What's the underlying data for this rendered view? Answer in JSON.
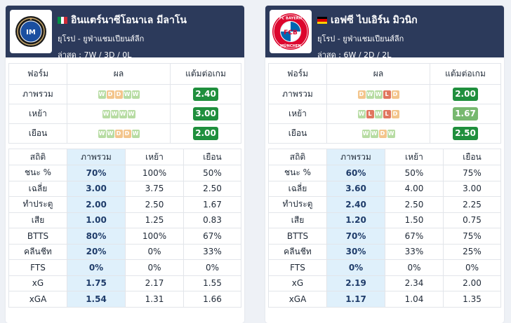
{
  "left": {
    "team_name": "อินแตร์นาซีโอนาเล มีลาโน",
    "competition": "ยุโรป - ยูฟ่าแชมเปียนส์ลีก",
    "last": "ล่าสุด : 7W / 3D / 0L",
    "logo_icon": "inter-crest-icon",
    "flag_colors": [
      "#009246",
      "#ffffff",
      "#ce2b37"
    ],
    "form_headers": [
      "ฟอร์ม",
      "ผล",
      "แต้มต่อเกม"
    ],
    "form_rows": [
      {
        "label": "ภาพรวม",
        "results": [
          "W",
          "D",
          "D",
          "W",
          "W"
        ],
        "ppg": "2.40",
        "shade": "dark"
      },
      {
        "label": "เหย้า",
        "results": [
          "W",
          "W",
          "W",
          "W"
        ],
        "ppg": "3.00",
        "shade": "dark"
      },
      {
        "label": "เยือน",
        "results": [
          "W",
          "W",
          "D",
          "D",
          "W"
        ],
        "ppg": "2.00",
        "shade": "dark"
      }
    ],
    "stat_headers": [
      "สถิติ",
      "ภาพรวม",
      "เหย้า",
      "เยือน"
    ],
    "stat_rows": [
      {
        "label": "ชนะ %",
        "overall": "70%",
        "home": "100%",
        "away": "50%"
      },
      {
        "label": "เฉลี่ย",
        "overall": "3.00",
        "home": "3.75",
        "away": "2.50"
      },
      {
        "label": "ทำประตู",
        "overall": "2.00",
        "home": "2.50",
        "away": "1.67"
      },
      {
        "label": "เสีย",
        "overall": "1.00",
        "home": "1.25",
        "away": "0.83"
      },
      {
        "label": "BTTS",
        "overall": "80%",
        "home": "100%",
        "away": "67%"
      },
      {
        "label": "คลีนชีท",
        "overall": "20%",
        "home": "0%",
        "away": "33%"
      },
      {
        "label": "FTS",
        "overall": "0%",
        "home": "0%",
        "away": "0%"
      },
      {
        "label": "xG",
        "overall": "1.75",
        "home": "2.17",
        "away": "1.55"
      },
      {
        "label": "xGA",
        "overall": "1.54",
        "home": "1.31",
        "away": "1.66"
      }
    ]
  },
  "right": {
    "team_name": "เอฟซี ไบเอิร์น มิวนิก",
    "competition": "ยุโรป - ยูฟ่าแชมเปียนส์ลีก",
    "last": "ล่าสุด : 6W / 2D / 2L",
    "logo_icon": "bayern-crest-icon",
    "logo_text_top": "FC BAYERN",
    "logo_text_bottom": "MÜNCHEN",
    "logo_text_center": "FCB",
    "flag_colors": [
      "#000000",
      "#dd0000",
      "#ffce00"
    ],
    "form_headers": [
      "ฟอร์ม",
      "ผล",
      "แต้มต่อเกม"
    ],
    "form_rows": [
      {
        "label": "ภาพรวม",
        "results": [
          "D",
          "W",
          "W",
          "L",
          "D"
        ],
        "ppg": "2.00",
        "shade": "dark"
      },
      {
        "label": "เหย้า",
        "results": [
          "W",
          "L",
          "W",
          "L",
          "D"
        ],
        "ppg": "1.67",
        "shade": "light"
      },
      {
        "label": "เยือน",
        "results": [
          "W",
          "W",
          "D",
          "W"
        ],
        "ppg": "2.50",
        "shade": "dark"
      }
    ],
    "stat_headers": [
      "สถิติ",
      "ภาพรวม",
      "เหย้า",
      "เยือน"
    ],
    "stat_rows": [
      {
        "label": "ชนะ %",
        "overall": "60%",
        "home": "50%",
        "away": "75%"
      },
      {
        "label": "เฉลี่ย",
        "overall": "3.60",
        "home": "4.00",
        "away": "3.00"
      },
      {
        "label": "ทำประตู",
        "overall": "2.40",
        "home": "2.50",
        "away": "2.25"
      },
      {
        "label": "เสีย",
        "overall": "1.20",
        "home": "1.50",
        "away": "0.75"
      },
      {
        "label": "BTTS",
        "overall": "70%",
        "home": "67%",
        "away": "75%"
      },
      {
        "label": "คลีนชีท",
        "overall": "30%",
        "home": "33%",
        "away": "25%"
      },
      {
        "label": "FTS",
        "overall": "0%",
        "home": "0%",
        "away": "0%"
      },
      {
        "label": "xG",
        "overall": "2.19",
        "home": "2.34",
        "away": "2.00"
      },
      {
        "label": "xGA",
        "overall": "1.17",
        "home": "1.04",
        "away": "1.35"
      }
    ]
  }
}
